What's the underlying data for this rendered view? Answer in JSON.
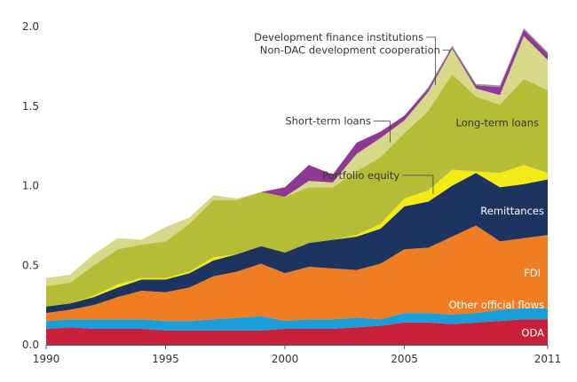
{
  "chart_data": {
    "type": "area",
    "stacked": true,
    "title": "",
    "xlabel": "",
    "ylabel": "",
    "xlim": [
      1990,
      2011
    ],
    "ylim": [
      0,
      2.0
    ],
    "grid": false,
    "legend": "inline labels",
    "x": [
      1990,
      1991,
      1992,
      1993,
      1994,
      1995,
      1996,
      1997,
      1998,
      1999,
      2000,
      2001,
      2002,
      2003,
      2004,
      2005,
      2006,
      2007,
      2008,
      2009,
      2010,
      2011
    ],
    "x_ticks": [
      "1990",
      "1995",
      "2000",
      "2005",
      "2011"
    ],
    "x_tick_values": [
      1990,
      1995,
      2000,
      2005,
      2011
    ],
    "y_ticks": [
      "0.0",
      "0.5",
      "1.0",
      "1.5",
      "2.0"
    ],
    "y_tick_values": [
      0,
      0.5,
      1.0,
      1.5,
      2.0
    ],
    "series": [
      {
        "name": "ODA",
        "color": "#c8203a",
        "text_color": "#ffffff",
        "values": [
          0.1,
          0.11,
          0.1,
          0.1,
          0.1,
          0.09,
          0.09,
          0.09,
          0.09,
          0.09,
          0.1,
          0.1,
          0.1,
          0.11,
          0.12,
          0.14,
          0.14,
          0.13,
          0.14,
          0.15,
          0.16,
          0.16
        ]
      },
      {
        "name": "Other official flows",
        "color": "#1a9dd9",
        "text_color": "#ffffff",
        "values": [
          0.05,
          0.05,
          0.06,
          0.06,
          0.06,
          0.06,
          0.06,
          0.07,
          0.08,
          0.09,
          0.05,
          0.06,
          0.06,
          0.06,
          0.04,
          0.06,
          0.06,
          0.06,
          0.06,
          0.07,
          0.07,
          0.07
        ]
      },
      {
        "name": "FDI",
        "color": "#ee7d24",
        "text_color": "#ffffff",
        "values": [
          0.05,
          0.06,
          0.09,
          0.14,
          0.18,
          0.18,
          0.21,
          0.27,
          0.29,
          0.33,
          0.3,
          0.33,
          0.32,
          0.3,
          0.35,
          0.4,
          0.41,
          0.49,
          0.55,
          0.43,
          0.44,
          0.46
        ]
      },
      {
        "name": "Remittances",
        "color": "#1d3461",
        "text_color": "#ffffff",
        "values": [
          0.04,
          0.04,
          0.05,
          0.06,
          0.07,
          0.08,
          0.09,
          0.1,
          0.11,
          0.11,
          0.13,
          0.15,
          0.18,
          0.21,
          0.22,
          0.27,
          0.29,
          0.32,
          0.33,
          0.34,
          0.34,
          0.35
        ]
      },
      {
        "name": "Portfolio equity",
        "color": "#f3ea18",
        "text_color": "#333333",
        "values": [
          0.0,
          0.0,
          0.01,
          0.02,
          0.01,
          0.01,
          0.01,
          0.02,
          0.0,
          0.0,
          0.0,
          0.0,
          0.0,
          0.01,
          0.03,
          0.05,
          0.07,
          0.1,
          0.01,
          0.09,
          0.12,
          0.04
        ]
      },
      {
        "name": "Long-term loans",
        "color": "#b5bd36",
        "text_color": "#333333",
        "values": [
          0.13,
          0.13,
          0.19,
          0.22,
          0.21,
          0.23,
          0.3,
          0.36,
          0.34,
          0.34,
          0.35,
          0.35,
          0.33,
          0.4,
          0.42,
          0.41,
          0.5,
          0.6,
          0.47,
          0.43,
          0.54,
          0.52
        ]
      },
      {
        "name": "Short-term loans",
        "color": "#d6d98a",
        "text_color": "#333333",
        "values": [
          0.05,
          0.05,
          0.07,
          0.07,
          0.03,
          0.09,
          0.04,
          0.03,
          0.01,
          0.0,
          0.0,
          0.04,
          0.03,
          0.11,
          0.12,
          0.08,
          0.12,
          0.16,
          0.05,
          0.06,
          0.27,
          0.19
        ]
      },
      {
        "name": "Development finance institutions",
        "color": "#8f3894",
        "text_color": "#333333",
        "values": [
          0.0,
          0.0,
          0.0,
          0.0,
          0.0,
          0.0,
          0.0,
          0.0,
          0.0,
          0.0,
          0.06,
          0.1,
          0.05,
          0.07,
          0.04,
          0.03,
          0.02,
          0.01,
          0.02,
          0.05,
          0.04,
          0.04
        ]
      },
      {
        "name": "Non-DAC development cooperation",
        "color": "#9a9a9a",
        "text_color": "#333333",
        "values": [
          0.0,
          0.0,
          0.0,
          0.0,
          0.0,
          0.0,
          0.0,
          0.0,
          0.0,
          0.0,
          0.0,
          0.0,
          0.0,
          0.0,
          0.0,
          0.0,
          0.01,
          0.01,
          0.01,
          0.01,
          0.01,
          0.01
        ]
      }
    ]
  }
}
